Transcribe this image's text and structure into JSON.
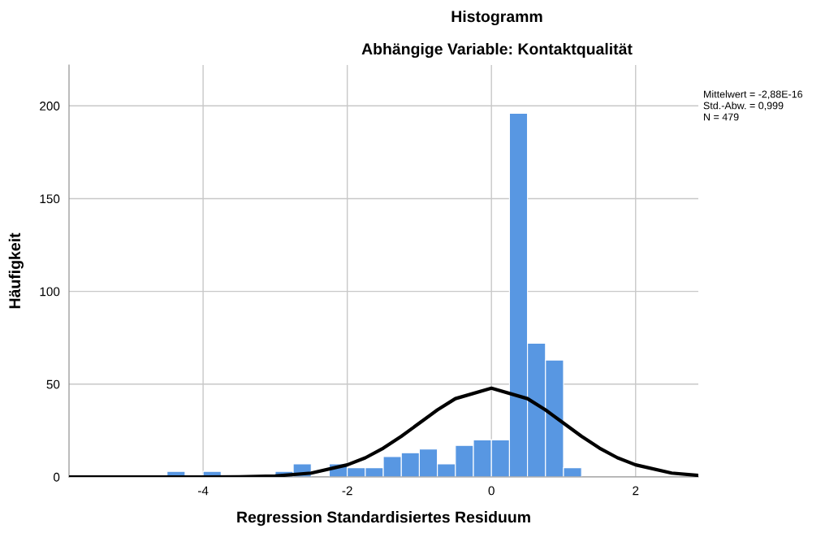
{
  "chart_data": {
    "type": "histogram",
    "title": "Histogramm",
    "subtitle": "Abhängige Variable: Kontaktqualität",
    "xlabel": "Regression Standardisiertes Residuum",
    "ylabel": "Häufigkeit",
    "bins": [
      -4.5,
      -4.25,
      -4.0,
      -3.75,
      -3.5,
      -3.25,
      -3.0,
      -2.75,
      -2.5,
      -2.25,
      -2.0,
      -1.75,
      -1.5,
      -1.25,
      -1.0,
      -0.75,
      -0.5,
      -0.25,
      0,
      0.25,
      0.5,
      0.75,
      1.0,
      1.25
    ],
    "values": [
      3,
      0,
      3,
      0,
      0,
      0,
      3,
      7,
      0,
      7,
      5,
      5,
      11,
      13,
      15,
      7,
      17,
      20,
      20,
      196,
      72,
      63,
      5
    ],
    "color": "#5897e2",
    "series": [
      {
        "type": "line",
        "color": "#000000",
        "x": [
          -5.86,
          -4,
          -3.5,
          -3,
          -2.5,
          -2,
          -1.75,
          -1.5,
          -1.25,
          -1,
          -0.75,
          -0.5,
          0,
          0.5,
          0.75,
          1,
          1.25,
          1.5,
          1.75,
          2,
          2.5,
          2.87
        ],
        "values": [
          0,
          0,
          0.1,
          0.5,
          2.1,
          6.5,
          10.3,
          15.5,
          21.9,
          29,
          36.1,
          42.2,
          47.8,
          42.2,
          36.1,
          29,
          21.9,
          15.5,
          10.3,
          6.5,
          2.1,
          0.8
        ]
      }
    ],
    "xlim": [
      -5.86,
      2.87
    ],
    "ylim": [
      0,
      222
    ],
    "xticks": [
      -4,
      -2,
      0,
      2
    ],
    "yticks": [
      0,
      50,
      100,
      150,
      200
    ],
    "grid": true,
    "annotations": [
      "Mittelwert = -2,88E-16",
      "Std.-Abw. = 0,999",
      "N = 479"
    ]
  }
}
